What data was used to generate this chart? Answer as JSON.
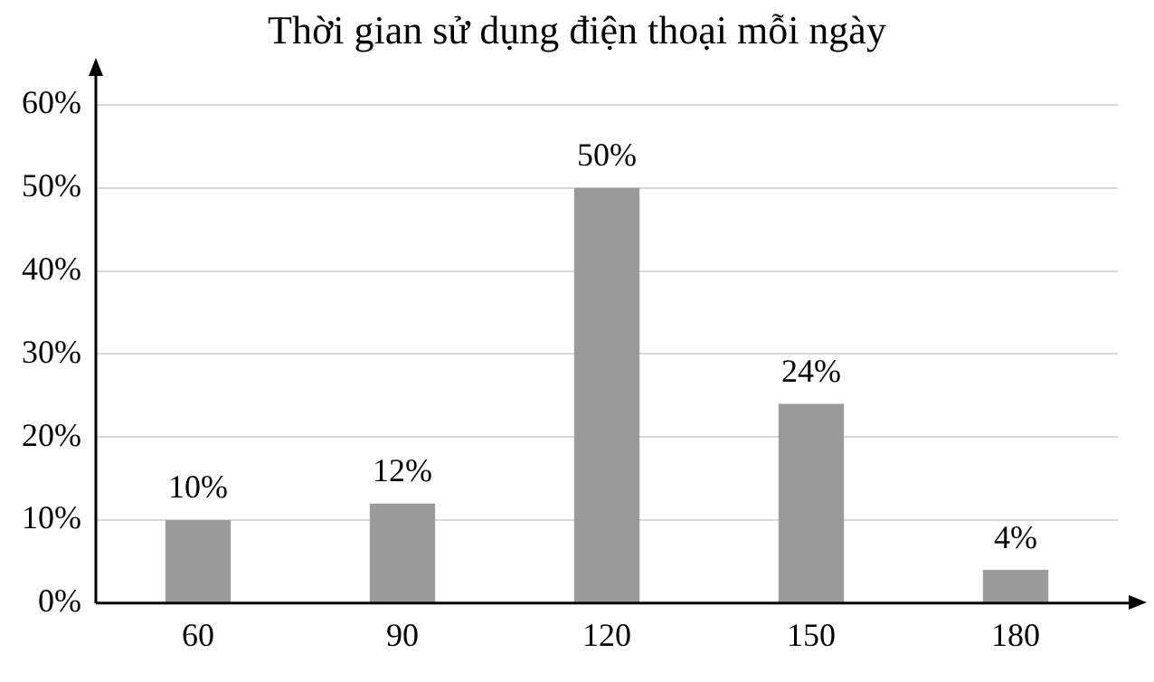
{
  "chart_data": {
    "type": "bar",
    "title": "Thời gian sử dụng điện thoại mỗi ngày",
    "categories": [
      "60",
      "90",
      "120",
      "150",
      "180"
    ],
    "values": [
      10,
      12,
      50,
      24,
      4
    ],
    "value_labels": [
      "10%",
      "12%",
      "50%",
      "24%",
      "4%"
    ],
    "color": "#9a9a9a",
    "ylim": [
      0,
      60
    ],
    "yticks": [
      {
        "value": 0,
        "label": "0%"
      },
      {
        "value": 10,
        "label": "10%"
      },
      {
        "value": 20,
        "label": "20%"
      },
      {
        "value": 30,
        "label": "30%"
      },
      {
        "value": 40,
        "label": "40%"
      },
      {
        "value": 50,
        "label": "50%"
      },
      {
        "value": 60,
        "label": "60%"
      }
    ],
    "grid": "y",
    "legend": false
  }
}
